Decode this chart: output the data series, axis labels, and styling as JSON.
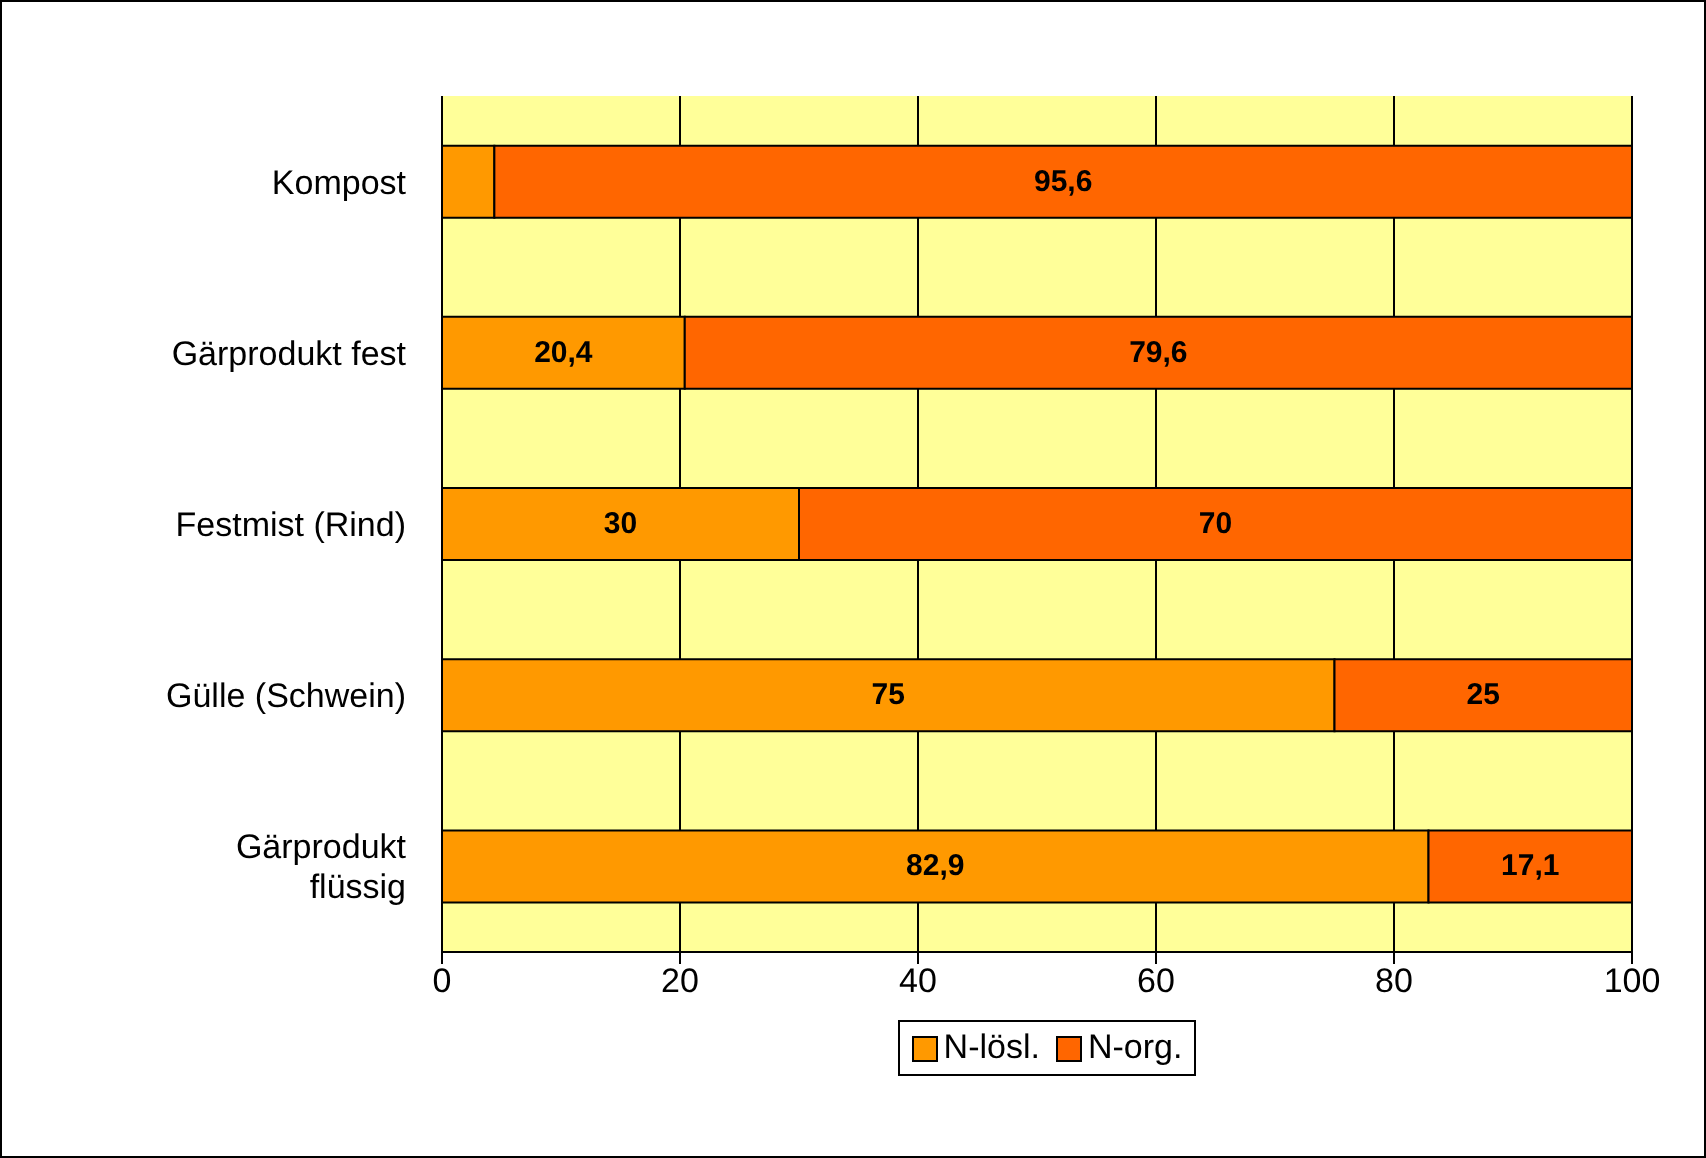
{
  "chart_data": {
    "type": "bar",
    "orientation": "horizontal",
    "stacked": true,
    "categories": [
      "Kompost",
      "Gärprodukt fest",
      "Festmist (Rind)",
      "Gülle (Schwein)",
      "Gärprodukt flüssig"
    ],
    "series": [
      {
        "name": "N-lösl.",
        "color": "#ff9900",
        "values": [
          4.4,
          20.4,
          30,
          75,
          82.9
        ],
        "value_labels": [
          null,
          "20,4",
          "30",
          "75",
          "82,9"
        ]
      },
      {
        "name": "N-org.",
        "color": "#ff6600",
        "values": [
          95.6,
          79.6,
          70,
          25,
          17.1
        ],
        "value_labels": [
          "95,6",
          "79,6",
          "70",
          "25",
          "17,1"
        ]
      }
    ],
    "xlim": [
      0,
      100
    ],
    "xticks": [
      0,
      20,
      40,
      60,
      80,
      100
    ],
    "grid": "x",
    "legend": "bottom"
  }
}
